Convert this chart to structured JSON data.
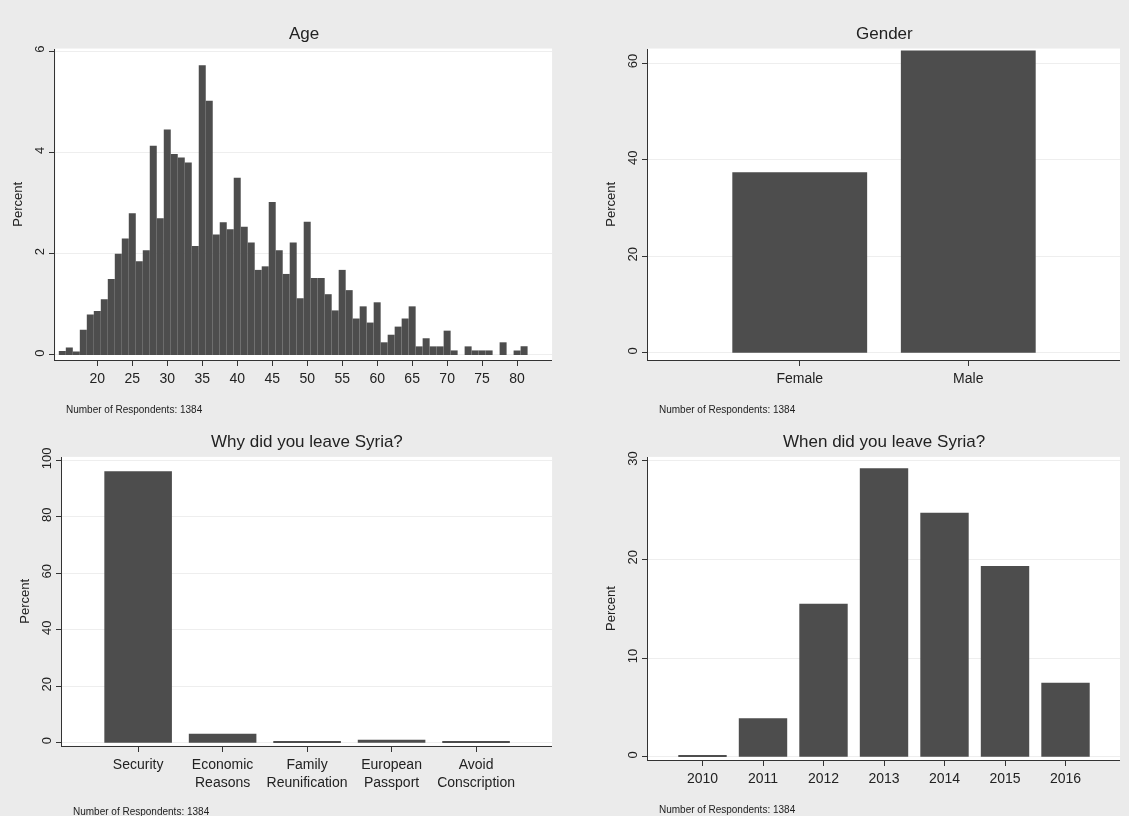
{
  "chart_data": [
    {
      "type": "histogram",
      "title": "Age",
      "ylabel": "Percent",
      "color": "#4d4d4d",
      "grid": "y",
      "bins": [
        14.5,
        15.5,
        16.5,
        17.5,
        18.5,
        19.5,
        20.5,
        21.5,
        22.5,
        23.5,
        24.5,
        25.5,
        26.5,
        27.5,
        28.5,
        29.5,
        30.5,
        31.5,
        32.5,
        33.5,
        34.5,
        35.5,
        36.5,
        37.5,
        38.5,
        39.5,
        40.5,
        41.5,
        42.5,
        43.5,
        44.5,
        45.5,
        46.5,
        47.5,
        48.5,
        49.5,
        50.5,
        51.5,
        52.5,
        53.5,
        54.5,
        55.5,
        56.5,
        57.5,
        58.5,
        59.5,
        60.5,
        61.5,
        62.5,
        63.5,
        64.5,
        65.5,
        66.5,
        67.5,
        68.5,
        69.5,
        70.5,
        71.5,
        72.5,
        73.5,
        74.5,
        75.5,
        76.5,
        77.5,
        78.5,
        79.5,
        80.5,
        81.5
      ],
      "values": [
        0.08,
        0.15,
        0.07,
        0.5,
        0.8,
        0.87,
        1.1,
        1.5,
        2.0,
        2.3,
        2.8,
        1.85,
        2.07,
        4.13,
        2.7,
        4.45,
        3.97,
        3.9,
        3.8,
        2.15,
        5.72,
        5.02,
        2.38,
        2.62,
        2.48,
        3.5,
        2.53,
        2.22,
        1.68,
        1.75,
        3.02,
        2.07,
        1.6,
        2.22,
        1.12,
        2.63,
        1.52,
        1.52,
        1.2,
        0.88,
        1.68,
        1.28,
        0.72,
        0.96,
        0.64,
        1.04,
        0.25,
        0.4,
        0.56,
        0.72,
        0.96,
        0.17,
        0.33,
        0.17,
        0.17,
        0.48,
        0.09,
        0,
        0.17,
        0.09,
        0.09,
        0.09,
        0,
        0.25,
        0,
        0.09,
        0.17
      ],
      "xlim": [
        14,
        85
      ],
      "xticks": [
        20,
        25,
        30,
        35,
        40,
        45,
        50,
        55,
        60,
        65,
        70,
        75,
        80
      ],
      "ylim": [
        -0.1,
        6.05
      ],
      "yticks": [
        0,
        2,
        4,
        6
      ],
      "annotations": [
        "Number of Respondents: 1384"
      ]
    },
    {
      "type": "bar",
      "title": "Gender",
      "ylabel": "Percent",
      "color": "#4d4d4d",
      "grid": "y",
      "categories": [
        "Female",
        "Male"
      ],
      "values": [
        37.4,
        62.6
      ],
      "ylim": [
        -1.5,
        63
      ],
      "yticks": [
        0,
        20,
        40,
        60
      ],
      "annotations": [
        "Number of Respondents: 1384"
      ]
    },
    {
      "type": "bar",
      "title": "Why did you leave Syria?",
      "ylabel": "Percent",
      "color": "#4d4d4d",
      "grid": "y",
      "categories": [
        "Security",
        "Economic Reasons",
        "Family Reunification",
        "European Passport",
        "Avoid Conscription"
      ],
      "values": [
        96.1,
        3.2,
        0.6,
        1.0,
        0.5
      ],
      "ylim": [
        -1.1,
        101.2
      ],
      "yticks": [
        0,
        20,
        40,
        60,
        80,
        100
      ],
      "annotations": [
        "Number of Respondents: 1384"
      ]
    },
    {
      "type": "bar",
      "title": "When did you leave Syria?",
      "ylabel": "Percent",
      "color": "#4d4d4d",
      "grid": "y",
      "categories": [
        "2010",
        "2011",
        "2012",
        "2013",
        "2014",
        "2015",
        "2016"
      ],
      "values": [
        0.2,
        3.9,
        15.5,
        29.2,
        24.7,
        19.3,
        7.5
      ],
      "ylim": [
        -0.35,
        30.35
      ],
      "yticks": [
        0,
        10,
        20,
        30
      ],
      "annotations": [
        "Number of Respondents: 1384"
      ]
    }
  ]
}
